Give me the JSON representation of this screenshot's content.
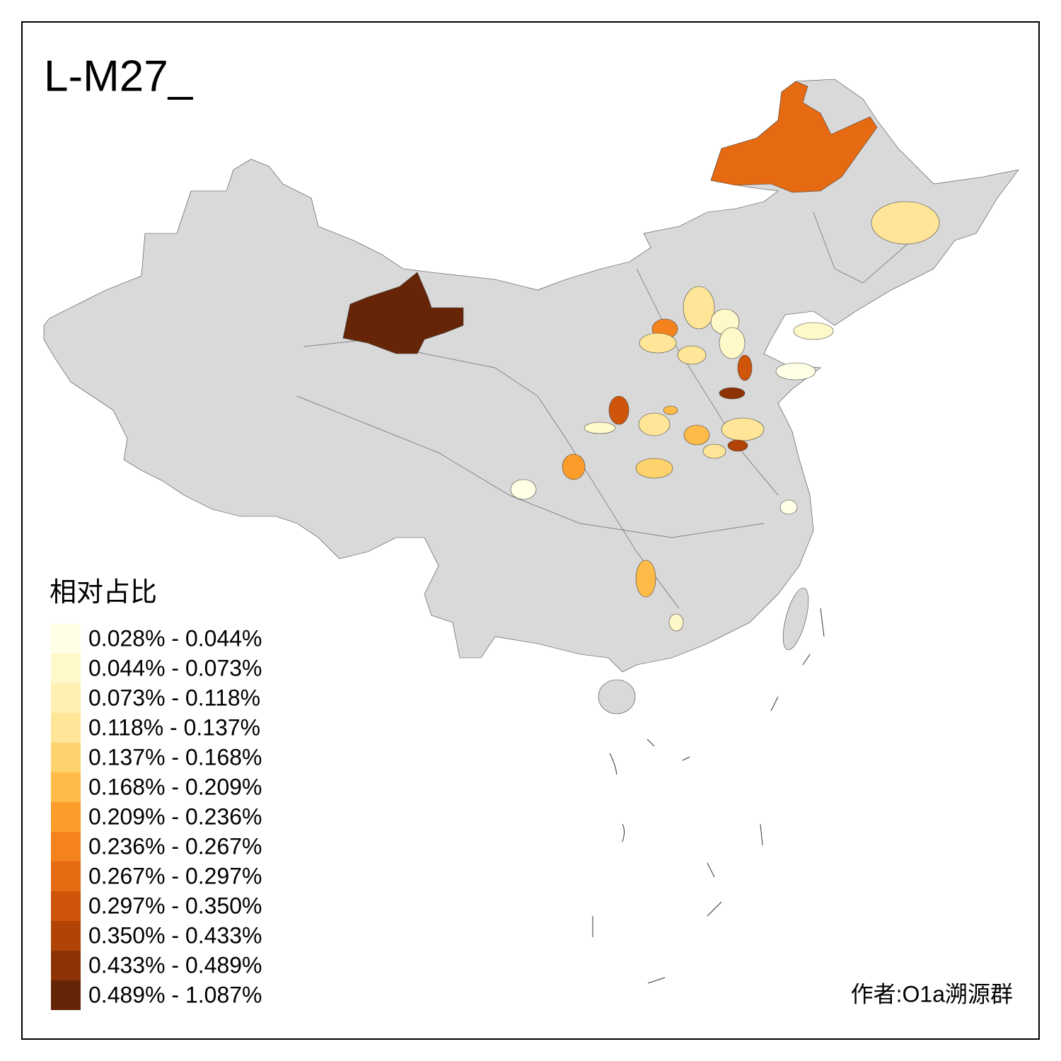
{
  "title": "L-M27_",
  "legend": {
    "title": "相对占比",
    "items": [
      {
        "label": "0.028% - 0.044%",
        "color": "#ffffe5"
      },
      {
        "label": "0.044% - 0.073%",
        "color": "#fff8c9"
      },
      {
        "label": "0.073% - 0.118%",
        "color": "#ffefb0"
      },
      {
        "label": "0.118% - 0.137%",
        "color": "#fee597"
      },
      {
        "label": "0.137% - 0.168%",
        "color": "#fed26c"
      },
      {
        "label": "0.168% - 0.209%",
        "color": "#febb48"
      },
      {
        "label": "0.209% - 0.236%",
        "color": "#fc9c2b"
      },
      {
        "label": "0.236% - 0.267%",
        "color": "#f5831d"
      },
      {
        "label": "0.267% - 0.297%",
        "color": "#e66a12"
      },
      {
        "label": "0.297% - 0.350%",
        "color": "#cf550a"
      },
      {
        "label": "0.350% - 0.433%",
        "color": "#b24306"
      },
      {
        "label": "0.433% - 0.489%",
        "color": "#8c3305"
      },
      {
        "label": "0.489% - 1.087%",
        "color": "#662506"
      }
    ]
  },
  "author": "作者:O1a溯源群"
}
